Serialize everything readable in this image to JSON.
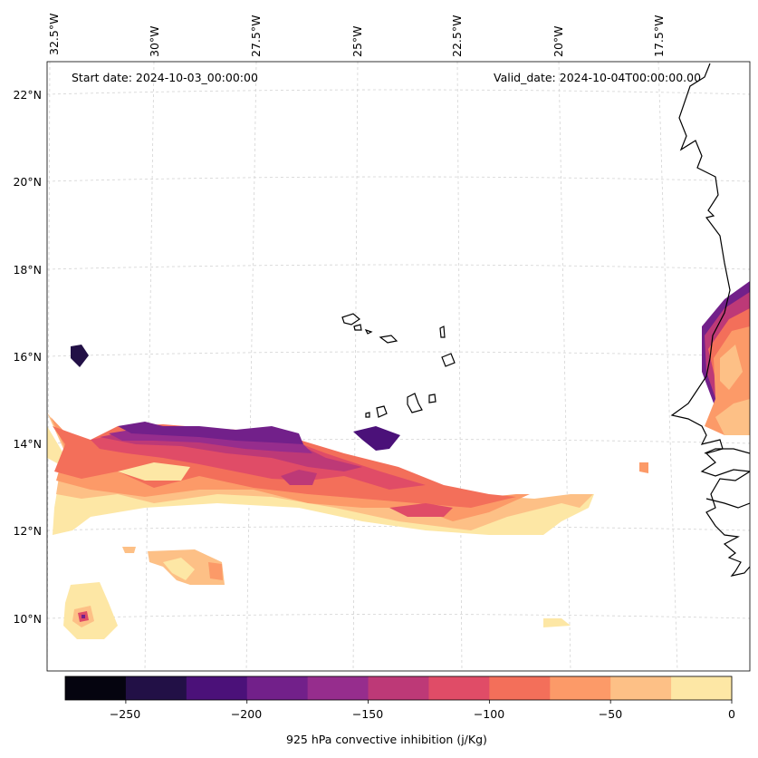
{
  "map": {
    "start_date": "Start date: 2024-10-03_00:00:00",
    "valid_date": "Valid_date: 2024-10-04T00:00:00.00",
    "lon_labels": [
      "32.5°W",
      "30°W",
      "27.5°W",
      "25°W",
      "22.5°W",
      "20°W",
      "17.5°W"
    ],
    "lat_labels": [
      "22°N",
      "20°N",
      "18°N",
      "16°N",
      "14°N",
      "12°N",
      "10°N"
    ],
    "variable": "925 hPa convective inhibition (j/Kg)",
    "region": "Cape Verde Islands and West African coast (Senegal, Gambia, Guinea-Bissau)"
  },
  "colorbar": {
    "label": "925 hPa convective inhibition (j/Kg)",
    "ticks": [
      "−250",
      "−200",
      "−150",
      "−100",
      "−50",
      "0"
    ],
    "levels": [
      -275,
      -250,
      -225,
      -200,
      -175,
      -150,
      -125,
      -100,
      -75,
      -50,
      -25,
      0
    ],
    "colors": [
      "#05040f",
      "#221046",
      "#4b1179",
      "#72208a",
      "#962d8d",
      "#bd3977",
      "#e04c67",
      "#f36f5a",
      "#fc9a68",
      "#fdc086",
      "#fde7a5"
    ]
  }
}
